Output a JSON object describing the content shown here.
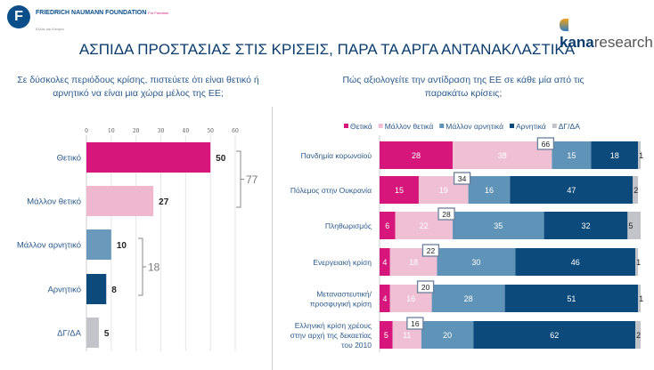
{
  "header": {
    "logo_text": "FRIEDRICH NAUMANN FOUNDATION",
    "logo_tagline": "For Freedom",
    "logo_sub": "Ελλάς και Κύπρος",
    "brand_bold": "kana",
    "brand_rest": "research",
    "title": "ΑΣΠΙΔΑ ΠΡΟΣΤΑΣΙΑΣ ΣΤΙΣ ΚΡΙΣΕΙΣ, ΠΑΡΑ ΤΑ ΑΡΓΑ ΑΝΤΑΝΑΚΛΑΣΤΙΚΑ"
  },
  "questions": {
    "left": "Σε δύσκολες περιόδους κρίσης, πιστεύετε ότι είναι θετικό ή αρνητικό να είναι μια χώρα μέλος της ΕΕ;",
    "right": "Πώς αξιολογείτε την αντίδραση της ΕΕ σε κάθε μία από τις παρακάτω κρίσεις;"
  },
  "chart_data": [
    {
      "type": "bar",
      "orientation": "horizontal",
      "categories": [
        "Θετικό",
        "Μάλλον θετικό",
        "Μάλλον αρνητικό",
        "Αρνητικό",
        "ΔΓ/ΔΑ"
      ],
      "values": [
        50,
        27,
        10,
        8,
        5
      ],
      "colors": [
        "#d6167a",
        "#efb8cf",
        "#6a99bb",
        "#0d4a7c",
        "#c2c4c9"
      ],
      "xlim": [
        0,
        60
      ],
      "xticks": [
        0,
        10,
        20,
        30,
        40,
        50,
        60
      ],
      "brackets": [
        {
          "label": "77",
          "from": 0,
          "to": 1
        },
        {
          "label": "18",
          "from": 2,
          "to": 3
        }
      ]
    },
    {
      "type": "bar",
      "stacked": true,
      "orientation": "horizontal",
      "legend_position": "top",
      "categories": [
        "Πανδημία κορωνοϊού",
        "Πόλεμος στην Ουκρανία",
        "Πληθωρισμός",
        "Ενεργειακή κρίση",
        "Μεταναστευτική/ προσφυγική κρίση",
        "Ελληνική κρίση χρέους στην αρχή της δεκαετίας του 2010"
      ],
      "series": [
        {
          "name": "Θετικά",
          "color": "#d6167a",
          "values": [
            28,
            15,
            6,
            4,
            4,
            5
          ]
        },
        {
          "name": "Μάλλον θετικά",
          "color": "#efc0d4",
          "values": [
            38,
            19,
            22,
            18,
            16,
            11
          ]
        },
        {
          "name": "Μάλλον αρνητικά",
          "color": "#5f93b8",
          "values": [
            15,
            16,
            35,
            30,
            28,
            20
          ]
        },
        {
          "name": "Αρνητικά",
          "color": "#0d4a7c",
          "values": [
            18,
            47,
            32,
            46,
            51,
            62
          ]
        },
        {
          "name": "ΔΓ/ΔΑ",
          "color": "#c2c4c9",
          "values": [
            1,
            2,
            5,
            1,
            1,
            2
          ]
        }
      ],
      "totals_positive": [
        66,
        34,
        28,
        22,
        20,
        16
      ]
    }
  ]
}
